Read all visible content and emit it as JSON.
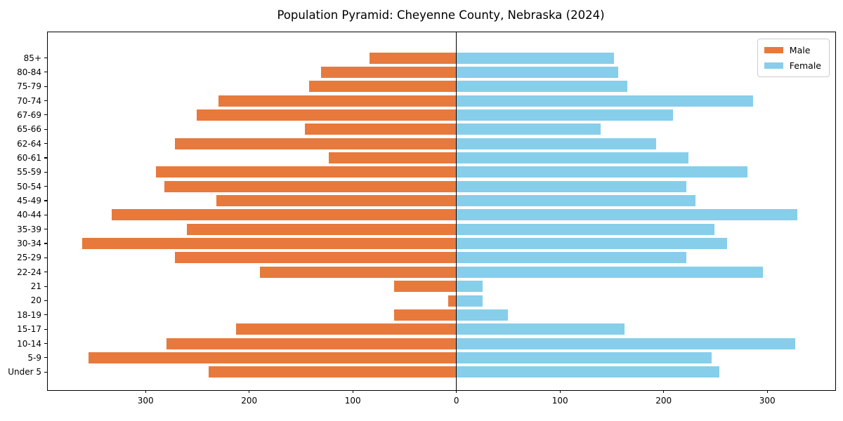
{
  "chart_data": {
    "type": "bar",
    "subtype": "population-pyramid",
    "title": "Population Pyramid: Cheyenne County, Nebraska (2024)",
    "xlabel": "",
    "ylabel": "",
    "categories": [
      "85+",
      "80-84",
      "75-79",
      "70-74",
      "67-69",
      "65-66",
      "62-64",
      "60-61",
      "55-59",
      "50-54",
      "45-49",
      "40-44",
      "35-39",
      "30-34",
      "25-29",
      "22-24",
      "21",
      "20",
      "18-19",
      "15-17",
      "10-14",
      "5-9",
      "Under 5"
    ],
    "series": [
      {
        "name": "Male",
        "side": "left",
        "color": "#e8793c",
        "values": [
          84,
          131,
          142,
          230,
          251,
          146,
          272,
          123,
          290,
          282,
          232,
          333,
          260,
          361,
          272,
          190,
          60,
          8,
          60,
          213,
          280,
          355,
          239
        ]
      },
      {
        "name": "Female",
        "side": "right",
        "color": "#87ceeb",
        "values": [
          152,
          156,
          165,
          286,
          209,
          139,
          193,
          224,
          281,
          222,
          231,
          329,
          249,
          261,
          222,
          296,
          25,
          25,
          50,
          162,
          327,
          246,
          254
        ]
      }
    ],
    "x_tick_values": [
      -300,
      -200,
      -100,
      0,
      100,
      200,
      300
    ],
    "x_tick_labels": [
      "300",
      "200",
      "100",
      "0",
      "100",
      "200",
      "300"
    ],
    "xlim": [
      -394,
      366
    ],
    "grid": false,
    "zero_line": true,
    "legend_position": "upper right"
  },
  "legend": {
    "male_label": "Male",
    "female_label": "Female"
  },
  "colors": {
    "male": "#e8793c",
    "female": "#87ceeb",
    "axis": "#000000",
    "legend_border": "#cccccc"
  }
}
